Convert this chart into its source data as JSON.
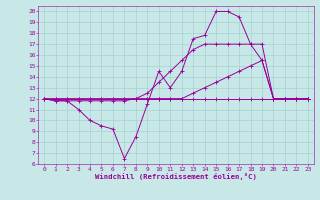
{
  "xlabel": "Windchill (Refroidissement éolien,°C)",
  "x_hours": [
    0,
    1,
    2,
    3,
    4,
    5,
    6,
    7,
    8,
    9,
    10,
    11,
    12,
    13,
    14,
    15,
    16,
    17,
    18,
    19,
    20,
    21,
    22,
    23
  ],
  "line1": [
    12,
    11.8,
    11.8,
    11,
    10,
    9.5,
    9.2,
    6.5,
    8.5,
    11.5,
    14.5,
    13,
    14.5,
    17.5,
    17.8,
    20,
    20,
    19.5,
    17,
    15.5,
    12,
    12,
    12,
    12
  ],
  "line2": [
    12,
    11.8,
    11.8,
    11.8,
    11.8,
    11.8,
    11.8,
    11.8,
    12,
    12.5,
    13.5,
    14.5,
    15.5,
    16.5,
    17,
    17,
    17,
    17,
    17,
    17,
    12,
    12,
    12,
    12
  ],
  "line3": [
    12,
    12,
    12,
    12,
    12,
    12,
    12,
    12,
    12,
    12,
    12,
    12,
    12,
    12.5,
    13,
    13.5,
    14,
    14.5,
    15,
    15.5,
    12,
    12,
    12,
    12
  ],
  "line4": [
    12,
    12,
    12,
    12,
    12,
    12,
    12,
    12,
    12,
    12,
    12,
    12,
    12,
    12,
    12,
    12,
    12,
    12,
    12,
    12,
    12,
    12,
    12,
    12
  ],
  "line_color": "#990099",
  "bg_color": "#c8e8e8",
  "grid_color": "#a0cccc",
  "text_color": "#990099",
  "ylim": [
    6,
    20.5
  ],
  "xlim": [
    -0.5,
    23.5
  ],
  "yticks": [
    6,
    7,
    8,
    9,
    10,
    11,
    12,
    13,
    14,
    15,
    16,
    17,
    18,
    19,
    20
  ],
  "xticks": [
    0,
    1,
    2,
    3,
    4,
    5,
    6,
    7,
    8,
    9,
    10,
    11,
    12,
    13,
    14,
    15,
    16,
    17,
    18,
    19,
    20,
    21,
    22,
    23
  ]
}
